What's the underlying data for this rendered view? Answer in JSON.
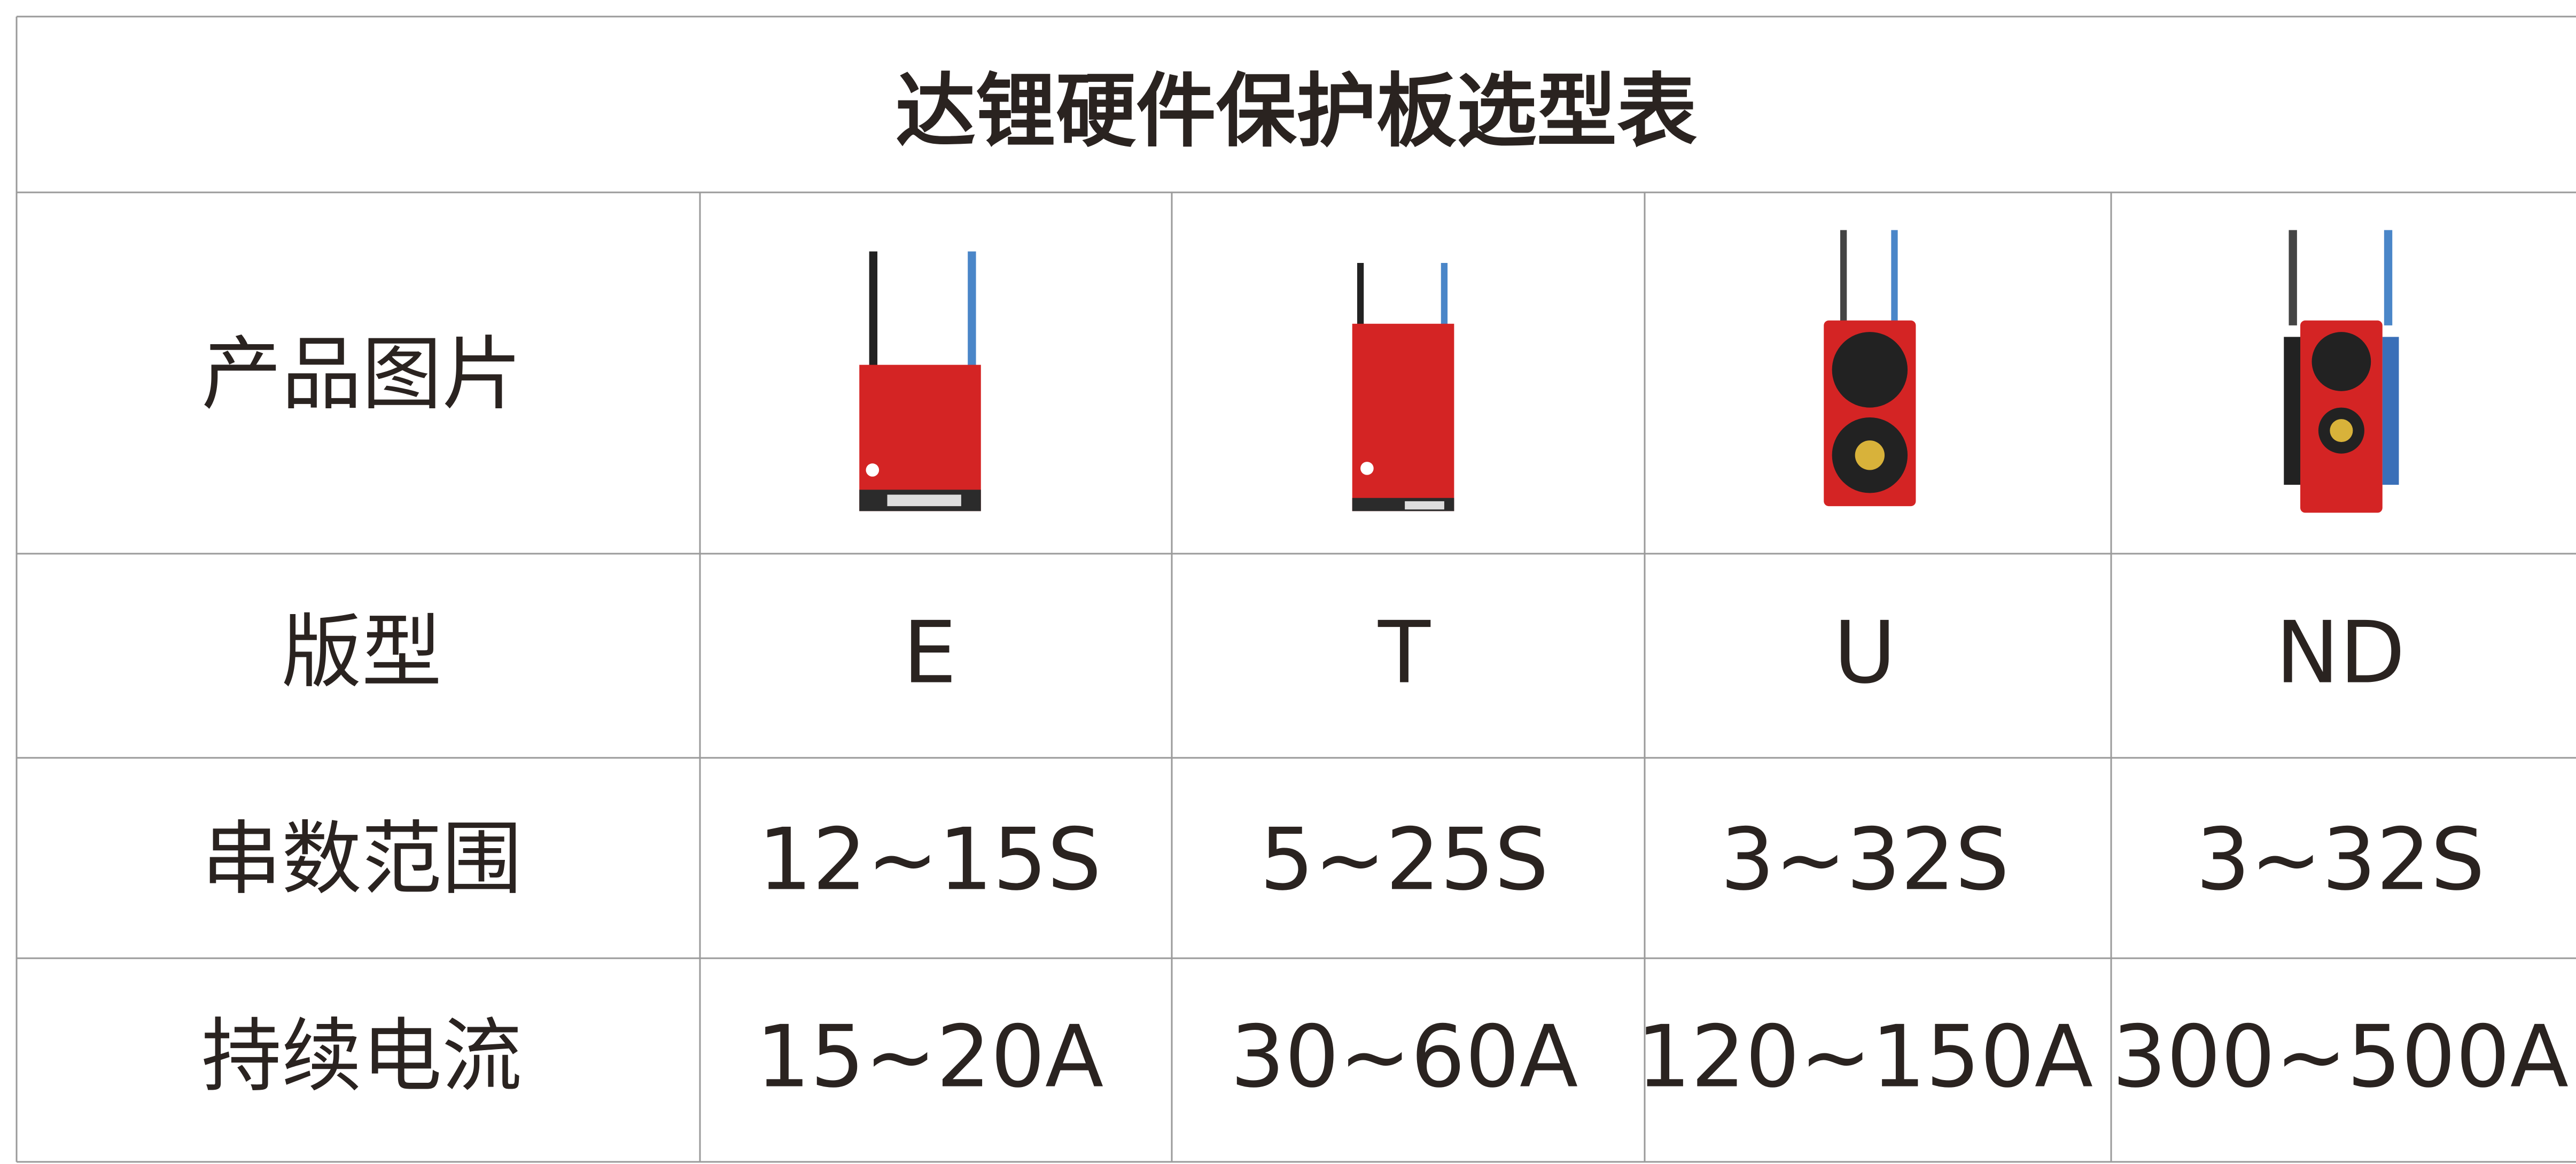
{
  "title": "达锂硬件保护板选型表",
  "table": {
    "rows": [
      [
        "产品图片"
      ],
      [
        "版型",
        "E",
        "T",
        "U",
        "ND"
      ],
      [
        "串数范围",
        "12~15S",
        "5~25S",
        "3~32S",
        "3~32S"
      ],
      [
        "持续电流",
        "15~20A",
        "30~60A",
        "120~150A",
        "300~500A"
      ]
    ]
  }
}
